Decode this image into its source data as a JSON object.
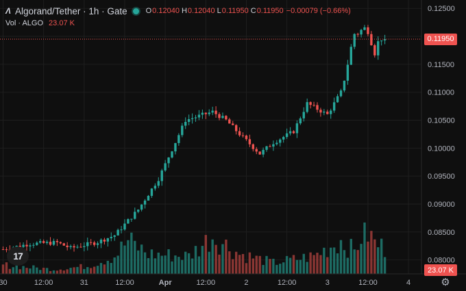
{
  "legend": {
    "logo": "Λ",
    "title": "Algorand/Tether · 1h · Gate",
    "open_key": "O",
    "open": "0.12040",
    "high_key": "H",
    "high": "0.12040",
    "low_key": "L",
    "low": "0.11950",
    "close_key": "C",
    "close": "0.11950",
    "change": "−0.00079 (−0.66%)"
  },
  "volume": {
    "name": "Vol · ALGO",
    "value": "23.07 K"
  },
  "price_tag": "0.11950",
  "volume_tag": "23.07 K",
  "tv_logo": "17",
  "settings_icon": "gear-icon",
  "colors": {
    "up": "#26a69a",
    "down": "#ef5350",
    "bg": "#0f0f0f",
    "grid": "#1f1f1f",
    "last_price_line": "#ef5350"
  },
  "chart_data": {
    "type": "candlestick",
    "y_axis": {
      "range": [
        0.0775,
        0.1265
      ],
      "ticks": [
        "0.12500",
        "0.12000",
        "0.11500",
        "0.11000",
        "0.10500",
        "0.10000",
        "0.09500",
        "0.09000",
        "0.08500",
        "0.08000"
      ]
    },
    "x_axis": {
      "tick_labels": [
        "30",
        "12:00",
        "31",
        "12:00",
        "Apr",
        "12:00",
        "2",
        "12:00",
        "3",
        "12:00",
        "4"
      ],
      "tick_bar_index": [
        0,
        12,
        24,
        36,
        48,
        60,
        72,
        84,
        96,
        108,
        120
      ]
    },
    "grid": true,
    "last_price": 0.1195,
    "control_points": [
      [
        0,
        0.0819
      ],
      [
        8,
        0.0829
      ],
      [
        16,
        0.0831
      ],
      [
        20,
        0.0821
      ],
      [
        28,
        0.0832
      ],
      [
        33,
        0.0844
      ],
      [
        40,
        0.089
      ],
      [
        46,
        0.0945
      ],
      [
        54,
        0.105
      ],
      [
        62,
        0.1065
      ],
      [
        66,
        0.105
      ],
      [
        70,
        0.1025
      ],
      [
        76,
        0.099
      ],
      [
        80,
        0.101
      ],
      [
        86,
        0.103
      ],
      [
        90,
        0.108
      ],
      [
        96,
        0.106
      ],
      [
        100,
        0.11
      ],
      [
        104,
        0.1205
      ],
      [
        108,
        0.1215
      ],
      [
        110,
        0.1175
      ],
      [
        112,
        0.12
      ],
      [
        113,
        0.1195
      ]
    ],
    "volume_profile": [
      [
        0,
        8
      ],
      [
        15,
        4
      ],
      [
        25,
        7
      ],
      [
        33,
        16
      ],
      [
        37,
        30
      ],
      [
        43,
        18
      ],
      [
        55,
        16
      ],
      [
        62,
        34
      ],
      [
        70,
        18
      ],
      [
        80,
        10
      ],
      [
        92,
        16
      ],
      [
        100,
        30
      ],
      [
        104,
        20
      ],
      [
        107,
        42
      ],
      [
        110,
        28
      ],
      [
        113,
        23
      ]
    ]
  }
}
